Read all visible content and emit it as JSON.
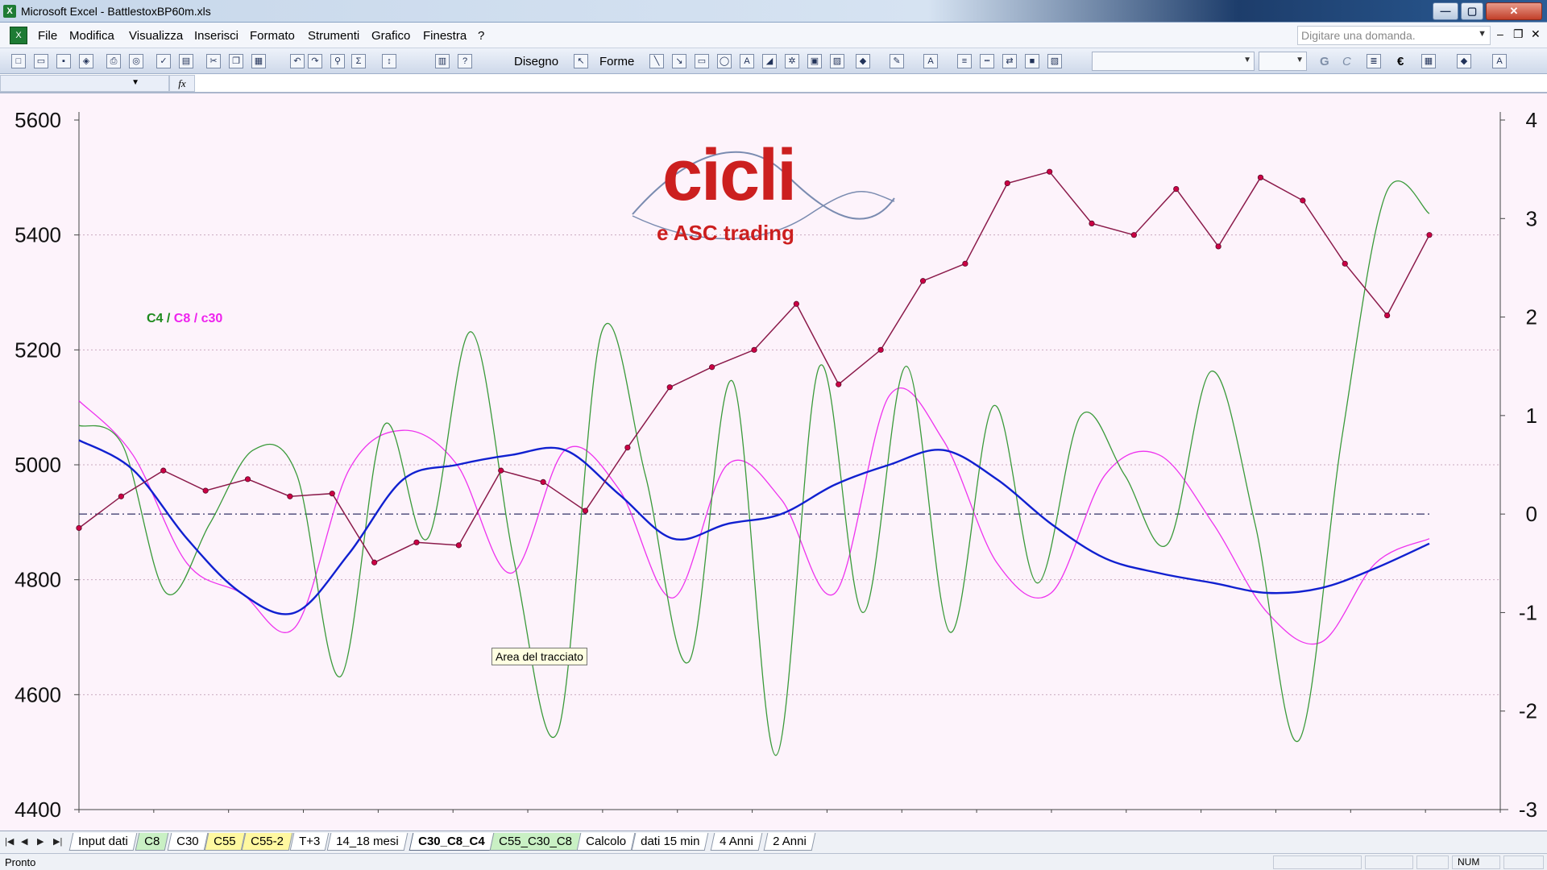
{
  "window": {
    "title": "Microsoft Excel - BattlestoxBP60m.xls",
    "app_icon": "excel-icon",
    "minimize": "—",
    "maximize": "▢",
    "close": "✕"
  },
  "menu": {
    "items": [
      "File",
      "Modifica",
      "Visualizza",
      "Inserisci",
      "Formato",
      "Strumenti",
      "Grafico",
      "Finestra",
      "?"
    ],
    "help_placeholder": "Digitare una domanda.",
    "mdi_minimize": "–",
    "mdi_restore": "❐",
    "mdi_close": "✕"
  },
  "toolbar": {
    "draw_label": "Disegno",
    "shapes_label": "Forme",
    "bold_label": "G",
    "italic_label": "C",
    "euro_label": "€"
  },
  "formula_bar": {
    "fx": "fx"
  },
  "chart": {
    "logo_word": "cicli",
    "logo_tagline": "e ASC trading",
    "legend": {
      "c4": "C4",
      "sep1": " / ",
      "c8": "C8",
      "sep2": " / ",
      "c30": "c30"
    },
    "tooltip": "Area del tracciato",
    "colors": {
      "price": "#8b1a4a",
      "price_marker": "#cc0044",
      "c4": "#3a9a3a",
      "c8": "#ee33ee",
      "c30": "#1020d0",
      "zero_line": "#333366",
      "background": "#fdf3fb"
    }
  },
  "chart_data": {
    "type": "line",
    "left_axis": {
      "ylim": [
        4400,
        5600
      ],
      "ticks": [
        "5600",
        "5400",
        "5200",
        "5000",
        "4800",
        "4600",
        "4400"
      ]
    },
    "right_axis": {
      "ylim": [
        -3,
        4
      ],
      "ticks": [
        "4",
        "3",
        "2",
        "1",
        "0",
        "-1",
        "-2",
        "-3"
      ]
    },
    "zero_reference": 0,
    "x_count": 19,
    "series": [
      {
        "name": "price",
        "axis": "left",
        "values": [
          4890,
          4945,
          4990,
          4955,
          4975,
          4945,
          4950,
          4830,
          4865,
          4860,
          4990,
          4970,
          4920,
          5030,
          5135,
          5170,
          5200,
          5280,
          5140,
          5200,
          5320,
          5350,
          5490,
          5510,
          5420,
          5400,
          5480,
          5380,
          5500,
          5460,
          5350,
          5260,
          5400
        ]
      },
      {
        "name": "C4",
        "axis": "right",
        "values": [
          0.9,
          0.7,
          -0.8,
          -0.1,
          0.65,
          0.4,
          -1.65,
          0.9,
          -0.25,
          1.85,
          -0.5,
          -2.2,
          1.85,
          0.4,
          -1.5,
          1.35,
          -2.45,
          1.5,
          -1.0,
          1.5,
          -1.2,
          1.1,
          -0.7,
          1.0,
          0.4,
          -0.3,
          1.45,
          -0.1,
          -2.3,
          0.8,
          3.25,
          3.05
        ]
      },
      {
        "name": "C8",
        "axis": "right",
        "values": [
          1.15,
          0.6,
          -0.5,
          -0.8,
          -1.15,
          0.45,
          0.85,
          0.5,
          -0.6,
          0.65,
          0.25,
          -0.85,
          0.5,
          0.15,
          -0.8,
          1.2,
          0.75,
          -0.5,
          -0.8,
          0.4,
          0.6,
          -0.1,
          -1.0,
          -1.3,
          -0.5,
          -0.25
        ]
      },
      {
        "name": "c30",
        "axis": "right",
        "values": [
          0.75,
          0.45,
          -0.25,
          -0.8,
          -1.0,
          -0.4,
          0.35,
          0.5,
          0.6,
          0.65,
          0.2,
          -0.25,
          -0.1,
          0.0,
          0.3,
          0.5,
          0.65,
          0.35,
          -0.1,
          -0.45,
          -0.6,
          -0.7,
          -0.8,
          -0.75,
          -0.55,
          -0.3
        ]
      }
    ]
  },
  "sheet_tabs": [
    {
      "label": "Input dati",
      "style": "plain"
    },
    {
      "label": "C8",
      "style": "green"
    },
    {
      "label": "C30",
      "style": "plain"
    },
    {
      "label": "C55",
      "style": "yellow"
    },
    {
      "label": "C55-2",
      "style": "yellow"
    },
    {
      "label": "T+3",
      "style": "plain"
    },
    {
      "label": "14_18 mesi",
      "style": "plain"
    },
    {
      "label": "C30_C8_C4",
      "style": "active"
    },
    {
      "label": "C55_C30_C8",
      "style": "green"
    },
    {
      "label": "Calcolo",
      "style": "plain"
    },
    {
      "label": "dati 15 min",
      "style": "plain"
    },
    {
      "label": "4 Anni",
      "style": "plain"
    },
    {
      "label": "2 Anni",
      "style": "plain"
    }
  ],
  "status": {
    "text": "Pronto",
    "num": "NUM"
  }
}
